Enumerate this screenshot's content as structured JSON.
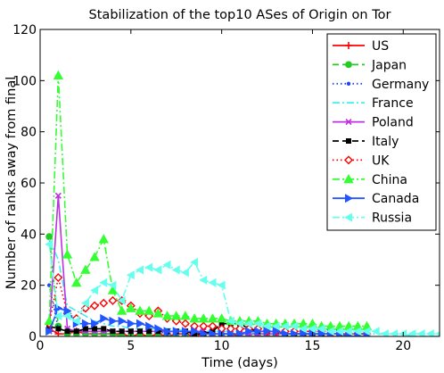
{
  "chart_data": {
    "type": "line",
    "title": "Stabilization of the top10 ASes of Origin on Tor",
    "xlabel": "Time (days)",
    "ylabel": "Number of ranks away from final",
    "xlim": [
      0,
      22
    ],
    "ylim": [
      0,
      120
    ],
    "xticks": [
      "0",
      "5",
      "10",
      "15",
      "20"
    ],
    "yticks": [
      "0",
      "20",
      "40",
      "60",
      "80",
      "100",
      "120"
    ],
    "grid": false,
    "legend_position": "top-right",
    "series": [
      {
        "name": "US",
        "color": "#ff0000",
        "dash": "solid",
        "marker": "plus",
        "x": [
          0.5,
          1,
          1.5,
          2,
          2.5,
          3,
          3.5,
          4,
          4.5,
          5,
          5.5,
          6,
          6.5,
          7,
          7.5,
          8,
          8.5,
          9,
          9.5,
          10,
          10.5,
          11,
          11.5,
          12,
          12.5,
          13,
          13.5,
          14,
          14.5,
          15,
          15.5,
          16,
          16.5,
          17,
          17.5,
          18
        ],
        "y": [
          3,
          1,
          1,
          2,
          1,
          1,
          1,
          1,
          1,
          0,
          1,
          0,
          1,
          0,
          1,
          1,
          0,
          1,
          1,
          1,
          1,
          0,
          0,
          0,
          0,
          0,
          0,
          0,
          0,
          0,
          0,
          0,
          0,
          0,
          0,
          0
        ]
      },
      {
        "name": "Japan",
        "color": "#22cc22",
        "dash": "dashed",
        "marker": "circle",
        "x": [
          0.5,
          1,
          1.5,
          2,
          2.5,
          3,
          3.5,
          4,
          4.5,
          5,
          5.5,
          6,
          6.5,
          7,
          7.5,
          8,
          8.5,
          9,
          9.5,
          10,
          10.5,
          11,
          11.5,
          12,
          12.5,
          13,
          13.5,
          14,
          14.5,
          15,
          15.5,
          16,
          16.5,
          17,
          17.5,
          18
        ],
        "y": [
          39,
          4,
          1,
          1,
          1,
          1,
          1,
          1,
          0,
          0,
          0,
          0,
          0,
          0,
          0,
          0,
          0,
          0,
          0,
          0,
          0,
          0,
          0,
          0,
          0,
          0,
          0,
          0,
          0,
          0,
          0,
          0,
          0,
          0,
          0,
          0
        ]
      },
      {
        "name": "Germany",
        "color": "#2244ff",
        "dash": "dotted",
        "marker": "dot",
        "x": [
          0.5,
          1,
          1.5,
          2,
          2.5,
          3,
          3.5,
          4,
          4.5,
          5,
          5.5,
          6,
          6.5,
          7,
          7.5,
          8,
          8.5,
          9,
          9.5,
          10,
          10.5,
          11,
          11.5,
          12,
          12.5,
          13,
          13.5,
          14,
          14.5,
          15,
          15.5,
          16,
          16.5,
          17,
          17.5,
          18
        ],
        "y": [
          20,
          3,
          2,
          2,
          2,
          2,
          2,
          2,
          2,
          2,
          2,
          2,
          2,
          1,
          1,
          1,
          1,
          1,
          1,
          1,
          1,
          1,
          1,
          1,
          1,
          1,
          1,
          1,
          1,
          1,
          1,
          1,
          1,
          1,
          1,
          1
        ]
      },
      {
        "name": "France",
        "color": "#44eeee",
        "dash": "dashdot",
        "marker": "none",
        "x": [
          0.5,
          1,
          1.5,
          2,
          2.5,
          3,
          3.5,
          4,
          4.5,
          5,
          5.5,
          6,
          6.5,
          7,
          7.5,
          8,
          8.5,
          9,
          9.5,
          10,
          10.5,
          11,
          11.5,
          12,
          12.5,
          13,
          13.5,
          14,
          14.5,
          15,
          15.5,
          16,
          16.5,
          17,
          17.5,
          18,
          18.5,
          19,
          19.5,
          20,
          20.5,
          21,
          21.5,
          22
        ],
        "y": [
          38,
          30,
          12,
          10,
          8,
          6,
          5,
          4,
          4,
          3,
          3,
          3,
          3,
          3,
          3,
          2,
          2,
          2,
          2,
          2,
          2,
          2,
          2,
          1,
          1,
          1,
          1,
          1,
          1,
          1,
          1,
          1,
          1,
          1,
          1,
          1,
          1,
          1,
          1,
          1,
          0,
          0,
          0,
          0
        ]
      },
      {
        "name": "Poland",
        "color": "#bb33dd",
        "dash": "solid",
        "marker": "x",
        "x": [
          0.5,
          1,
          1.5,
          2,
          2.5,
          3,
          3.5,
          4,
          4.5,
          5,
          5.5,
          6,
          6.5,
          7,
          7.5,
          8,
          8.5,
          9,
          9.5,
          10,
          10.5,
          11,
          11.5,
          12,
          12.5,
          13,
          13.5,
          14,
          14.5,
          15,
          15.5,
          16,
          16.5,
          17,
          17.5,
          18
        ],
        "y": [
          2,
          55,
          3,
          2,
          2,
          2,
          2,
          2,
          2,
          2,
          2,
          2,
          2,
          2,
          2,
          2,
          2,
          2,
          1,
          1,
          1,
          1,
          1,
          1,
          1,
          1,
          1,
          1,
          1,
          1,
          1,
          1,
          1,
          1,
          1,
          1
        ]
      },
      {
        "name": "Italy",
        "color": "#000000",
        "dash": "dashed",
        "marker": "square",
        "x": [
          0.5,
          1,
          1.5,
          2,
          2.5,
          3,
          3.5,
          4,
          4.5,
          5,
          5.5,
          6,
          6.5,
          7,
          7.5,
          8,
          8.5,
          9,
          9.5,
          10,
          10.5,
          11,
          11.5,
          12,
          12.5,
          13,
          13.5,
          14,
          14.5,
          15,
          15.5,
          16,
          16.5,
          17,
          17.5,
          18
        ],
        "y": [
          4,
          3,
          2,
          2,
          3,
          3,
          3,
          2,
          2,
          2,
          2,
          2,
          2,
          2,
          2,
          2,
          1,
          1,
          2,
          5,
          5,
          5,
          3,
          2,
          2,
          2,
          1,
          1,
          1,
          1,
          1,
          1,
          1,
          1,
          1,
          1
        ]
      },
      {
        "name": "UK",
        "color": "#ff0000",
        "dash": "dotted",
        "marker": "diamond",
        "x": [
          0.5,
          1,
          1.5,
          2,
          2.5,
          3,
          3.5,
          4,
          4.5,
          5,
          5.5,
          6,
          6.5,
          7,
          7.5,
          8,
          8.5,
          9,
          9.5,
          10,
          10.5,
          11,
          11.5,
          12,
          12.5,
          13,
          13.5,
          14,
          14.5,
          15,
          15.5,
          16,
          16.5,
          17,
          17.5,
          18
        ],
        "y": [
          5,
          23,
          9,
          7,
          11,
          12,
          13,
          14,
          14,
          12,
          9,
          8,
          10,
          7,
          6,
          5,
          4,
          4,
          4,
          3,
          3,
          3,
          3,
          3,
          2,
          2,
          2,
          2,
          2,
          2,
          2,
          1,
          1,
          1,
          1,
          1
        ]
      },
      {
        "name": "China",
        "color": "#33ff33",
        "dash": "dashdot",
        "marker": "triangle-up",
        "x": [
          0.5,
          1,
          1.5,
          2,
          2.5,
          3,
          3.5,
          4,
          4.5,
          5,
          5.5,
          6,
          6.5,
          7,
          7.5,
          8,
          8.5,
          9,
          9.5,
          10,
          10.5,
          11,
          11.5,
          12,
          12.5,
          13,
          13.5,
          14,
          14.5,
          15,
          15.5,
          16,
          16.5,
          17,
          17.5,
          18
        ],
        "y": [
          6,
          102,
          32,
          21,
          26,
          31,
          38,
          18,
          10,
          11,
          10,
          10,
          9,
          8,
          8,
          8,
          7,
          7,
          7,
          7,
          6,
          6,
          6,
          6,
          5,
          5,
          5,
          5,
          5,
          5,
          4,
          4,
          4,
          4,
          4,
          4
        ]
      },
      {
        "name": "Canada",
        "color": "#2255ff",
        "dash": "solid",
        "marker": "triangle-right",
        "x": [
          0.5,
          1,
          1.5,
          2,
          2.5,
          3,
          3.5,
          4,
          4.5,
          5,
          5.5,
          6,
          6.5,
          7,
          7.5,
          8,
          8.5,
          9,
          9.5,
          10,
          10.5,
          11,
          11.5,
          12,
          12.5,
          13,
          13.5,
          14,
          14.5,
          15,
          15.5,
          16,
          16.5,
          17,
          17.5,
          18
        ],
        "y": [
          2,
          11,
          10,
          5,
          5,
          5,
          7,
          6,
          6,
          5,
          5,
          4,
          3,
          2,
          2,
          2,
          2,
          1,
          1,
          1,
          1,
          1,
          2,
          2,
          2,
          2,
          1,
          1,
          1,
          1,
          1,
          1,
          1,
          0,
          0,
          0
        ]
      },
      {
        "name": "Russia",
        "color": "#66ffee",
        "dash": "dashdot",
        "marker": "triangle-left",
        "x": [
          0.5,
          1,
          1.5,
          2,
          2.5,
          3,
          3.5,
          4,
          4.5,
          5,
          5.5,
          6,
          6.5,
          7,
          7.5,
          8,
          8.5,
          9,
          9.5,
          10,
          10.5,
          11,
          11.5,
          12,
          12.5,
          13,
          13.5,
          14,
          14.5,
          15,
          15.5,
          16,
          16.5,
          17,
          17.5,
          18,
          18.5,
          19,
          19.5,
          20,
          20.5,
          21,
          21.5,
          22
        ],
        "y": [
          36,
          8,
          8,
          6,
          13,
          18,
          21,
          20,
          14,
          24,
          26,
          27,
          26,
          28,
          26,
          25,
          29,
          22,
          21,
          20,
          6,
          5,
          5,
          5,
          4,
          4,
          4,
          4,
          3,
          3,
          3,
          2,
          2,
          2,
          2,
          2,
          2,
          1,
          1,
          1,
          1,
          1,
          1,
          1
        ]
      }
    ]
  }
}
